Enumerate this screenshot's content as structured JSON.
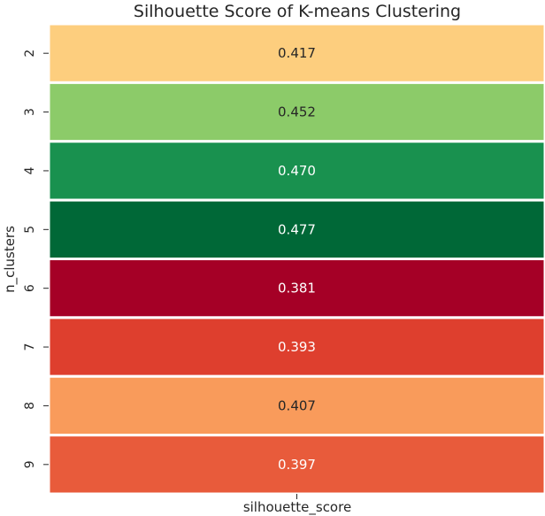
{
  "chart_data": {
    "type": "heatmap",
    "title": "Silhouette Score of K-means Clustering",
    "xlabel": "silhouette_score",
    "ylabel": "n_clusters",
    "columns": [
      "silhouette_score"
    ],
    "rows": [
      "2",
      "3",
      "4",
      "5",
      "6",
      "7",
      "8",
      "9"
    ],
    "values": [
      0.417,
      0.452,
      0.47,
      0.477,
      0.381,
      0.393,
      0.407,
      0.397
    ],
    "value_labels": [
      "0.417",
      "0.452",
      "0.470",
      "0.477",
      "0.381",
      "0.393",
      "0.407",
      "0.397"
    ],
    "colormap": "RdYlGn",
    "cell_colors": [
      "#fdce7e",
      "#8ccb69",
      "#19914f",
      "#006837",
      "#a50026",
      "#de3f2e",
      "#f99b5b",
      "#e85b3b"
    ],
    "cell_text_colors": [
      "#262626",
      "#262626",
      "#ffffff",
      "#ffffff",
      "#ffffff",
      "#ffffff",
      "#262626",
      "#ffffff"
    ],
    "grid_line_color": "#ffffff",
    "colorbar": false,
    "grid": false
  }
}
